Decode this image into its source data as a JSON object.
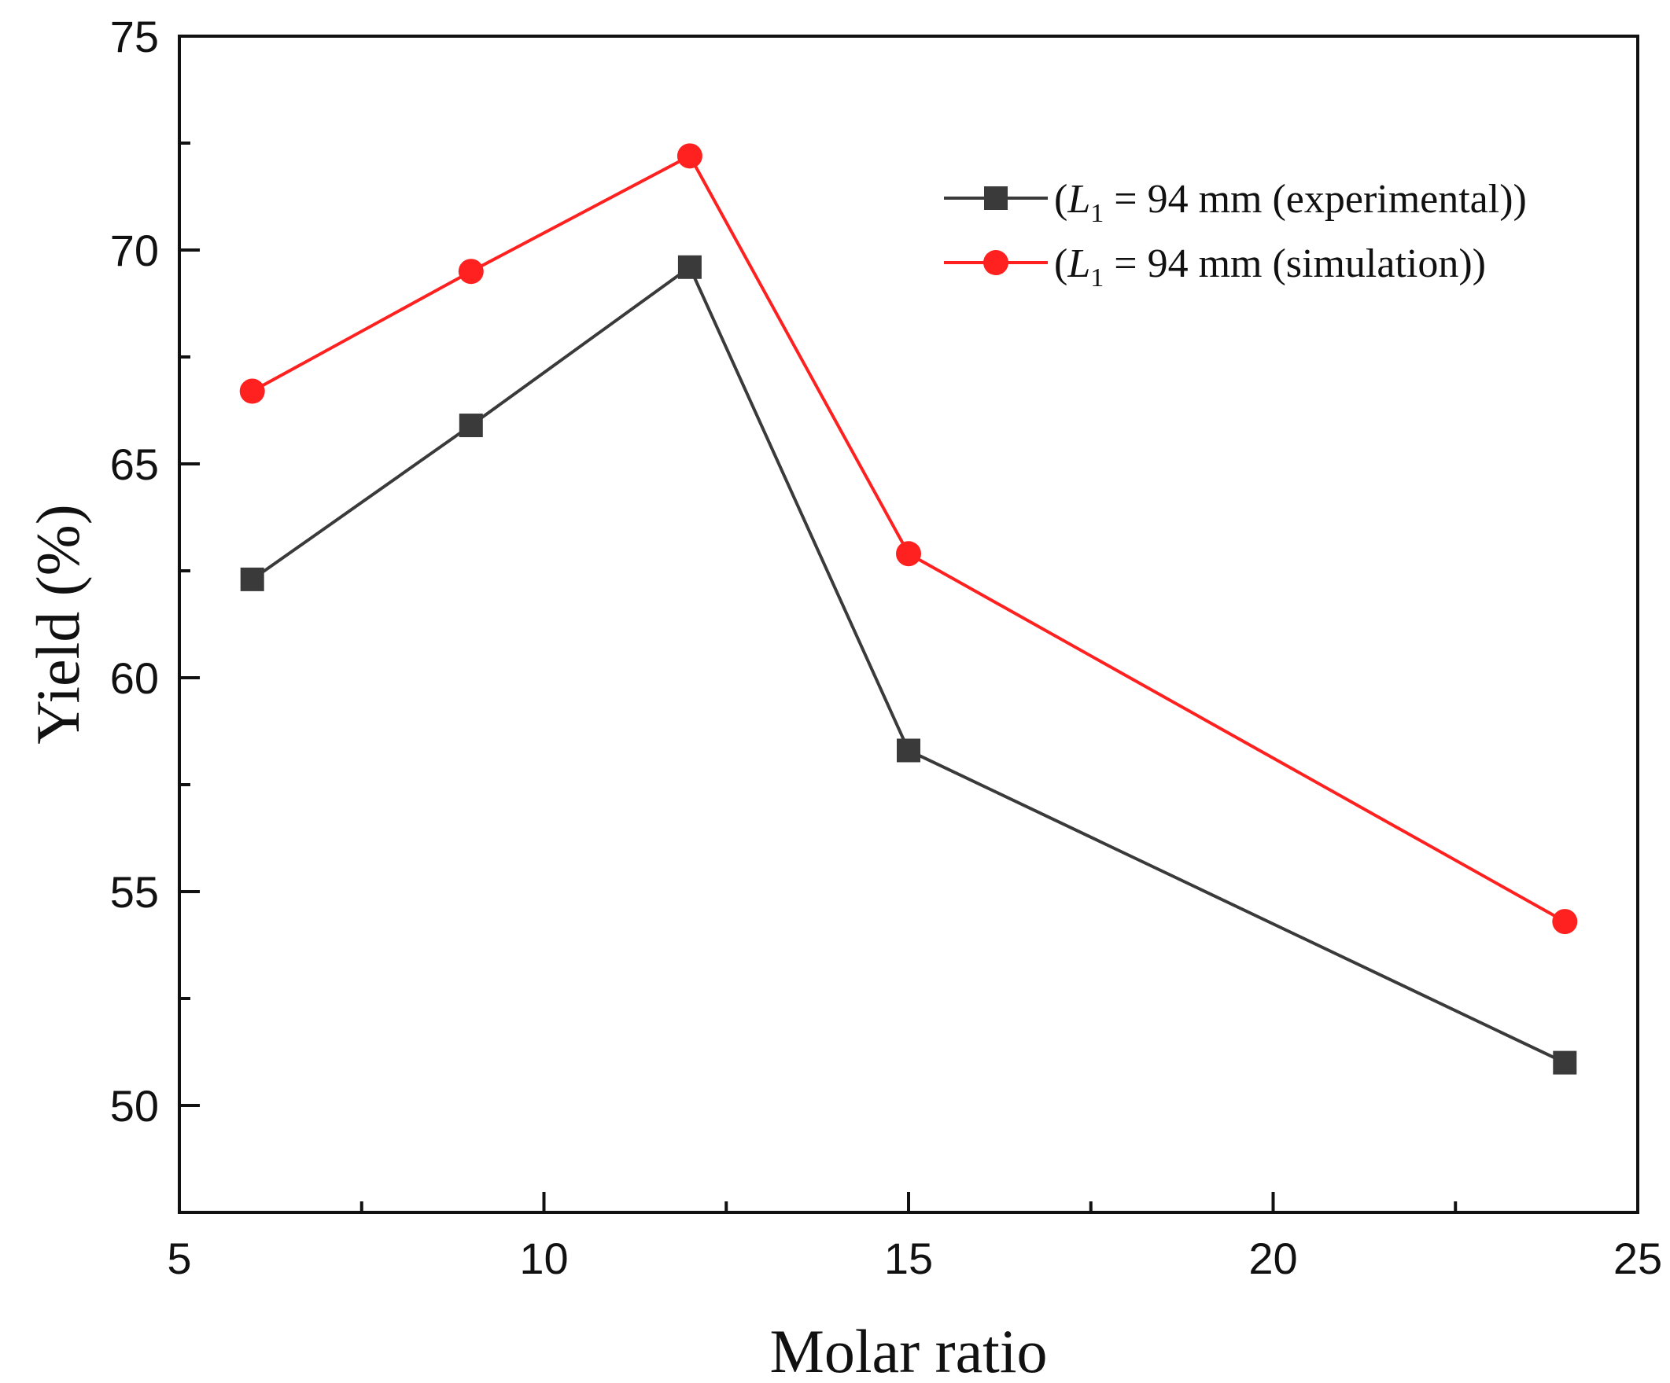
{
  "chart_data": {
    "type": "line",
    "title": "",
    "xlabel": "Molar ratio",
    "ylabel": "Yield (%)",
    "xlim": [
      5,
      25
    ],
    "ylim": [
      47.5,
      75
    ],
    "x_ticks": [
      "5",
      "10",
      "15",
      "20",
      "25"
    ],
    "y_ticks": [
      "50",
      "55",
      "60",
      "65",
      "70",
      "75"
    ],
    "grid": false,
    "legend_position": "top-right",
    "series": [
      {
        "name_prefix": "(",
        "name_var": "L",
        "name_sub": "1",
        "name_rest": " = 94 mm (experimental))",
        "color": "#3a3a3a",
        "marker": "square",
        "x": [
          6,
          9,
          12,
          15,
          24
        ],
        "y": [
          62.3,
          65.9,
          69.6,
          58.3,
          51.0
        ]
      },
      {
        "name_prefix": "(",
        "name_var": "L",
        "name_sub": "1",
        "name_rest": " = 94 mm (simulation))",
        "color": "#ff2020",
        "marker": "circle",
        "x": [
          6,
          9,
          12,
          15,
          24
        ],
        "y": [
          66.7,
          69.5,
          72.2,
          62.9,
          54.3
        ]
      }
    ]
  }
}
